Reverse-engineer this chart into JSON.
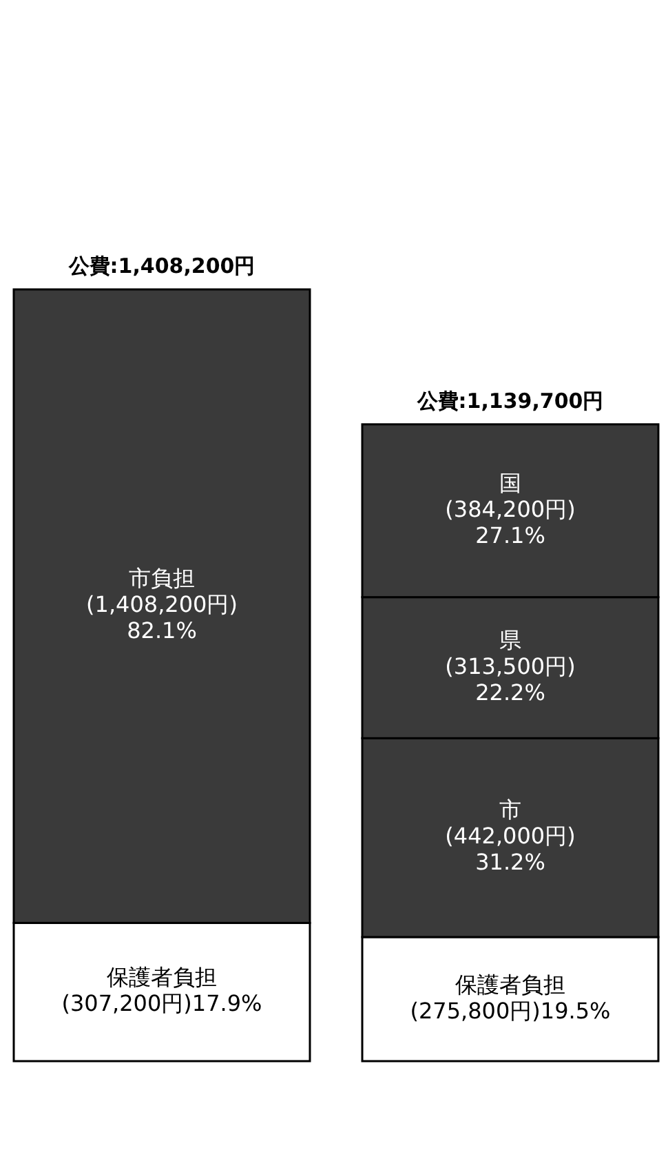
{
  "chart_data": {
    "type": "bar",
    "stacked": true,
    "categories": [
      null,
      null
    ],
    "annotations": [
      "公費:1,408,200円",
      "公費:1,139,700円"
    ],
    "series": [
      {
        "name": "保護者負担",
        "color": "#ffffff",
        "values": [
          307200,
          275800
        ],
        "value_labels": [
          "(307,200円)17.9%",
          "(275,800円)19.5%"
        ]
      },
      {
        "name": "市負担",
        "color": "#3a3a3a",
        "values": [
          1408200,
          null
        ],
        "value_labels": [
          "(1,408,200円) 82.1%",
          null
        ]
      },
      {
        "name": "市",
        "color": "#3a3a3a",
        "values": [
          null,
          442000
        ],
        "value_labels": [
          null,
          "(442,000円) 31.2%"
        ]
      },
      {
        "name": "県",
        "color": "#3a3a3a",
        "values": [
          null,
          313500
        ],
        "value_labels": [
          null,
          "(313,500円) 22.2%"
        ]
      },
      {
        "name": "国",
        "color": "#3a3a3a",
        "values": [
          null,
          384200
        ],
        "value_labels": [
          null,
          "(384,200円) 27.1%"
        ]
      }
    ]
  }
}
